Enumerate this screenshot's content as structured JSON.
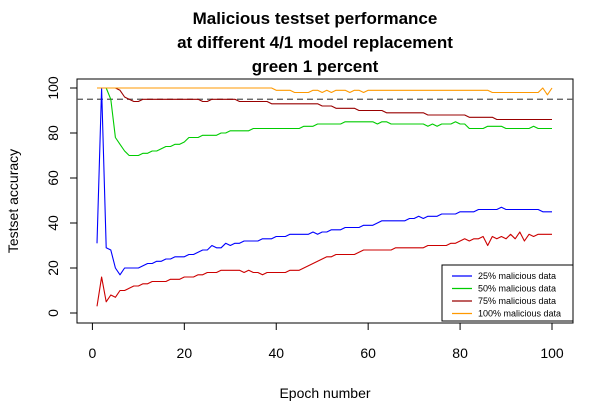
{
  "chart_data": {
    "type": "line",
    "title_lines": [
      "Malicious testset performance",
      "at different 4/1 model replacement",
      "green 1 percent"
    ],
    "xlabel": "Epoch number",
    "ylabel": "Testset accuracy",
    "xlim": [
      1,
      100
    ],
    "ylim": [
      0,
      100
    ],
    "xticks": [
      0,
      20,
      40,
      60,
      80,
      100
    ],
    "yticks": [
      0,
      20,
      40,
      60,
      80,
      100
    ],
    "grid": false,
    "legend_position": "bottom-right",
    "reference_line": {
      "y": 95,
      "style": "dashed",
      "color": "#555555"
    },
    "series": [
      {
        "name": "25% malicious data",
        "color": "#0000ff",
        "values": [
          31,
          100,
          29,
          28,
          20,
          17,
          20,
          20,
          20,
          20,
          21,
          22,
          22,
          23,
          23,
          24,
          24,
          25,
          25,
          25,
          26,
          26,
          27,
          28,
          28,
          30,
          29,
          29,
          31,
          30,
          31,
          31,
          32,
          32,
          32,
          32,
          33,
          33,
          33,
          34,
          34,
          34,
          35,
          35,
          35,
          35,
          35,
          36,
          35,
          36,
          36,
          37,
          37,
          37,
          38,
          38,
          38,
          38,
          39,
          39,
          39,
          40,
          41,
          41,
          41,
          41,
          41,
          41,
          42,
          42,
          43,
          42,
          43,
          43,
          43,
          44,
          44,
          44,
          44,
          45,
          45,
          45,
          45,
          46,
          46,
          46,
          46,
          46,
          47,
          46,
          46,
          46,
          46,
          46,
          46,
          46,
          46,
          45,
          45,
          45
        ]
      },
      {
        "name": "50% malicious data",
        "color": "#00cc00",
        "values": [
          100,
          100,
          100,
          95,
          78,
          75,
          72,
          70,
          70,
          70,
          71,
          71,
          72,
          72,
          73,
          74,
          74,
          75,
          75,
          76,
          78,
          78,
          78,
          79,
          79,
          79,
          79,
          80,
          80,
          81,
          81,
          81,
          81,
          81,
          82,
          82,
          82,
          82,
          82,
          82,
          82,
          82,
          82,
          82,
          82,
          83,
          83,
          83,
          84,
          84,
          84,
          84,
          84,
          84,
          85,
          85,
          85,
          85,
          85,
          85,
          85,
          84,
          85,
          85,
          84,
          84,
          84,
          84,
          84,
          84,
          84,
          84,
          83,
          84,
          83,
          84,
          84,
          84,
          85,
          84,
          84,
          82,
          82,
          82,
          82,
          83,
          83,
          83,
          83,
          82,
          82,
          82,
          82,
          82,
          82,
          83,
          82,
          82,
          82,
          82
        ]
      },
      {
        "name": "75% malicious data",
        "color": "#cc0000",
        "values": [
          3,
          16,
          5,
          8,
          7,
          10,
          10,
          11,
          12,
          12,
          13,
          13,
          14,
          14,
          14,
          14,
          15,
          15,
          15,
          16,
          16,
          16,
          17,
          17,
          18,
          18,
          18,
          19,
          19,
          19,
          19,
          19,
          18,
          19,
          18,
          18,
          17,
          18,
          18,
          18,
          18,
          18,
          19,
          19,
          19,
          20,
          21,
          22,
          23,
          24,
          25,
          25,
          26,
          26,
          26,
          26,
          26,
          27,
          28,
          28,
          28,
          28,
          28,
          28,
          28,
          29,
          29,
          29,
          29,
          29,
          29,
          29,
          30,
          30,
          30,
          30,
          30,
          31,
          31,
          32,
          33,
          32,
          33,
          33,
          34,
          30,
          34,
          33,
          34,
          33,
          35,
          33,
          36,
          32,
          35,
          34,
          35,
          35,
          35,
          35
        ]
      },
      {
        "name": "75% malicious data",
        "color": "#990000",
        "values": [
          100,
          100,
          100,
          100,
          100,
          99,
          96,
          95,
          94,
          94,
          95,
          95,
          95,
          95,
          95,
          95,
          95,
          95,
          95,
          95,
          95,
          95,
          95,
          94,
          94,
          95,
          95,
          95,
          95,
          95,
          95,
          94,
          94,
          94,
          94,
          94,
          94,
          94,
          93,
          93,
          93,
          93,
          93,
          93,
          93,
          93,
          93,
          93,
          93,
          92,
          92,
          92,
          91,
          91,
          91,
          91,
          91,
          90,
          90,
          90,
          90,
          90,
          90,
          89,
          89,
          89,
          89,
          89,
          89,
          89,
          89,
          89,
          88,
          88,
          88,
          88,
          88,
          88,
          88,
          88,
          88,
          87,
          87,
          87,
          87,
          87,
          87,
          86,
          86,
          86,
          86,
          86,
          86,
          86,
          86,
          86,
          86,
          86,
          86,
          86
        ]
      },
      {
        "name": "100% malicious data",
        "color": "#ff9900",
        "values": [
          100,
          100,
          100,
          100,
          100,
          100,
          100,
          100,
          100,
          100,
          100,
          100,
          100,
          100,
          100,
          100,
          100,
          100,
          100,
          100,
          100,
          100,
          100,
          100,
          100,
          100,
          100,
          100,
          100,
          100,
          100,
          100,
          100,
          100,
          100,
          100,
          100,
          100,
          100,
          99,
          99,
          99,
          99,
          98,
          98,
          98,
          98,
          99,
          99,
          98,
          99,
          98,
          99,
          99,
          99,
          98,
          99,
          99,
          98,
          99,
          99,
          99,
          99,
          99,
          99,
          99,
          99,
          99,
          99,
          99,
          99,
          99,
          99,
          99,
          99,
          99,
          99,
          99,
          99,
          99,
          99,
          99,
          99,
          99,
          99,
          99,
          98,
          98,
          98,
          98,
          98,
          98,
          98,
          98,
          98,
          98,
          98,
          100,
          97,
          100
        ]
      }
    ],
    "legend": [
      {
        "label": "25% malicious data",
        "color": "#0000ff"
      },
      {
        "label": "50% malicious data",
        "color": "#00cc00"
      },
      {
        "label": "75% malicious data",
        "color": "#990000"
      },
      {
        "label": "100% malicious data",
        "color": "#ff9900"
      }
    ]
  }
}
